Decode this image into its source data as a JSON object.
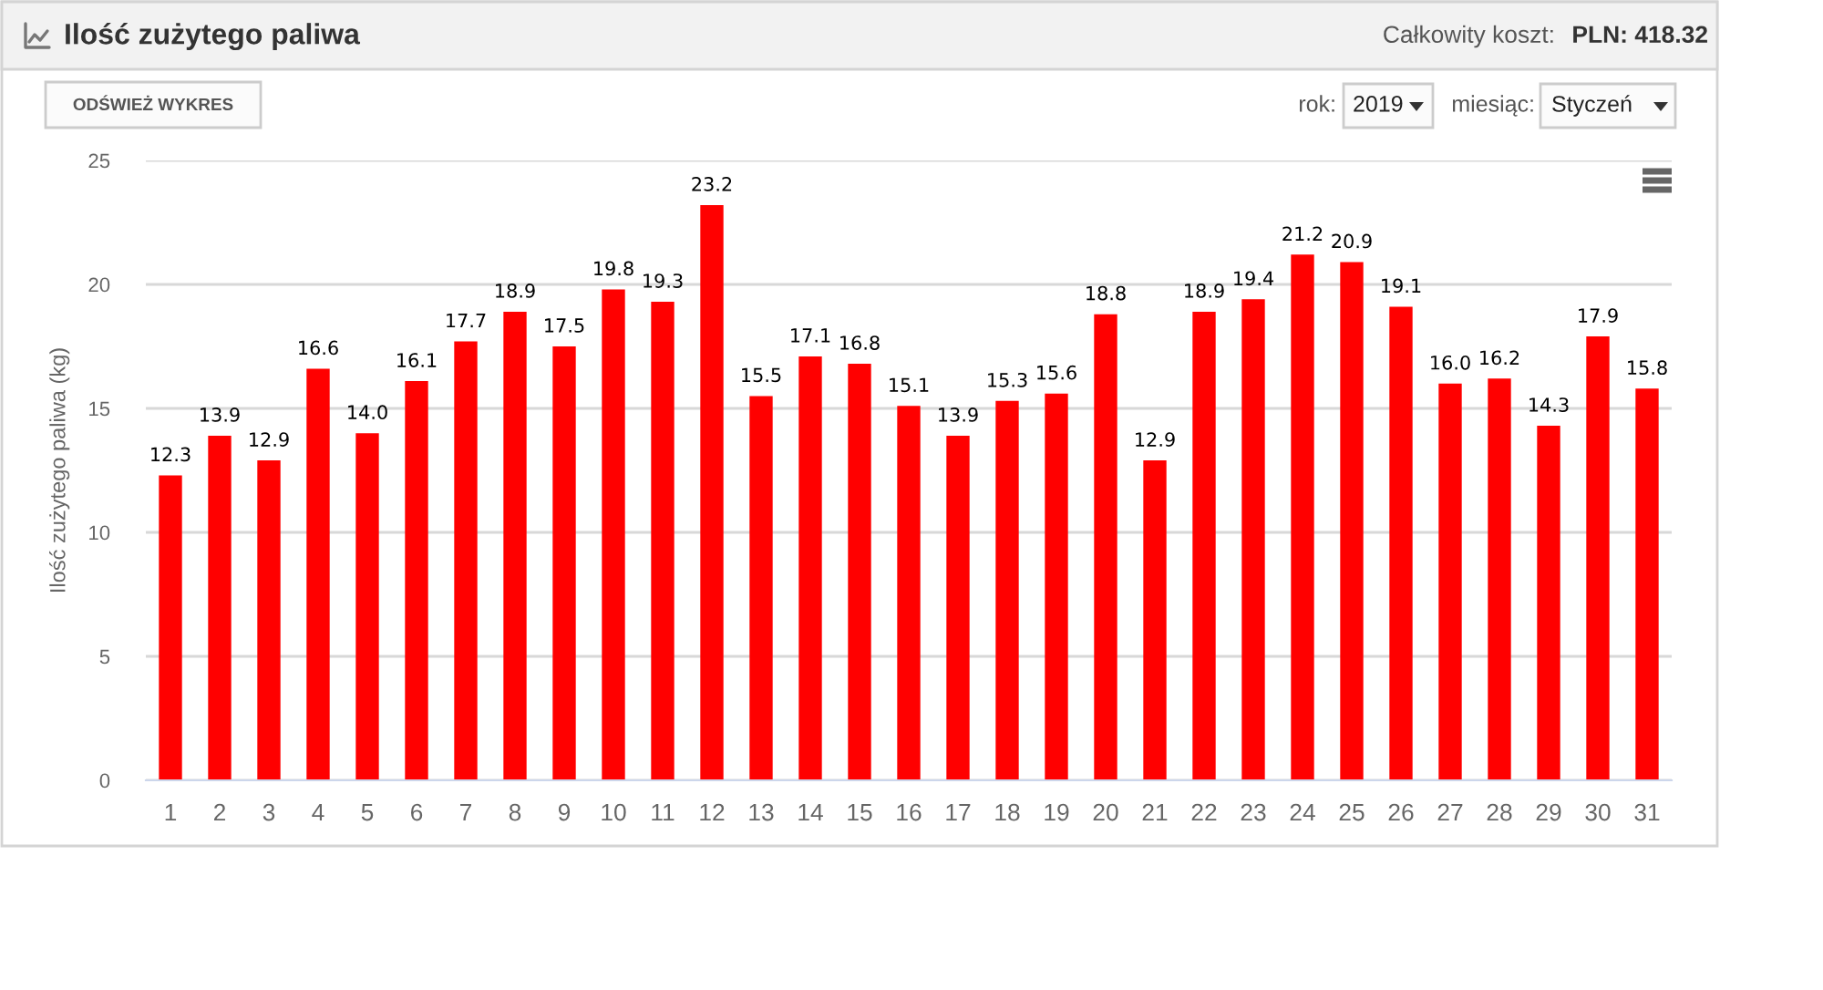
{
  "chart_data": {
    "type": "bar",
    "title": "Ilość zużytego paliwa",
    "ylabel": "Ilość zużytego paliwa (kg)",
    "categories": [
      "1",
      "2",
      "3",
      "4",
      "5",
      "6",
      "7",
      "8",
      "9",
      "10",
      "11",
      "12",
      "13",
      "14",
      "15",
      "16",
      "17",
      "18",
      "19",
      "20",
      "21",
      "22",
      "23",
      "24",
      "25",
      "26",
      "27",
      "28",
      "29",
      "30",
      "31"
    ],
    "values": [
      12.3,
      13.9,
      12.9,
      16.6,
      14,
      16.1,
      17.7,
      18.9,
      17.5,
      19.8,
      19.3,
      23.2,
      15.5,
      17.1,
      16.8,
      15.1,
      13.9,
      15.3,
      15.6,
      18.8,
      12.9,
      18.9,
      19.4,
      21.2,
      20.9,
      19.1,
      16,
      16.2,
      14.3,
      17.9,
      15.8
    ],
    "value_labels": [
      "12.3",
      "13.9",
      "12.9",
      "16.6",
      "14.0",
      "16.1",
      "17.7",
      "18.9",
      "17.5",
      "19.8",
      "19.3",
      "23.2",
      "15.5",
      "17.1",
      "16.8",
      "15.1",
      "13.9",
      "15.3",
      "15.6",
      "18.8",
      "12.9",
      "18.9",
      "19.4",
      "21.2",
      "20.9",
      "19.1",
      "16.0",
      "16.2",
      "14.3",
      "17.9",
      "15.8"
    ],
    "color": "#ff0000",
    "ylim": [
      0,
      25
    ],
    "yticks": [
      0,
      5,
      10,
      15,
      20,
      25
    ],
    "grid": "y",
    "annotations": [
      "Całkowity koszt:",
      "PLN: 418.32",
      "ODŚWIEŻ WYKRES",
      "rok:",
      "2019",
      "miesiąc:",
      "Styczeń"
    ]
  }
}
